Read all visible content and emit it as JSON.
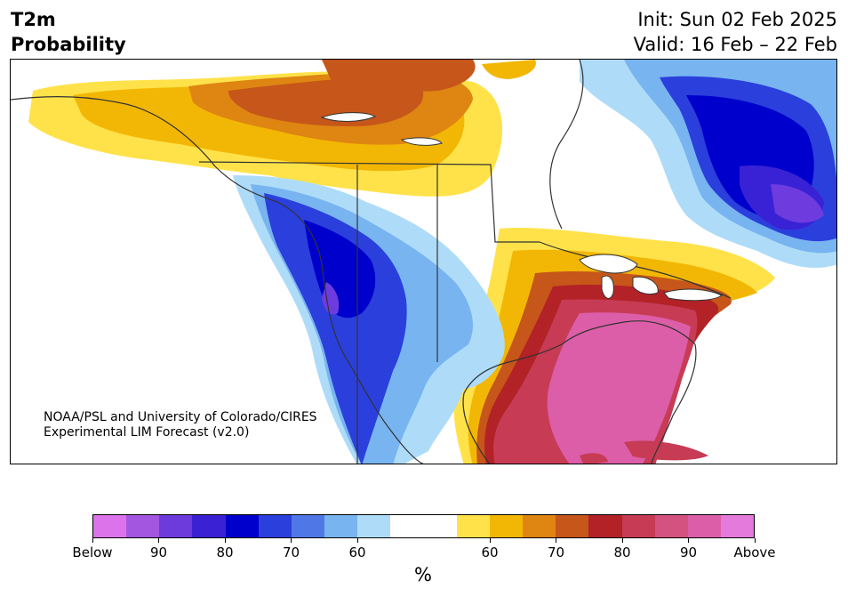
{
  "header": {
    "title_line1": "T2m",
    "title_line2": "Probability",
    "init_text": "Init: Sun 02 Feb 2025",
    "valid_text": "Valid: 16 Feb – 22 Feb"
  },
  "map": {
    "credit_line1": "NOAA/PSL and University of Colorado/CIRES",
    "credit_line2": "Experimental LIM Forecast (v2.0)",
    "colors": {
      "below_light": "#aedcf8",
      "below_60": "#78b4f0",
      "below_65": "#4f78e6",
      "below_70": "#2a3fdc",
      "below_75": "#0000cc",
      "below_80": "#3922d6",
      "below_85": "#6e3cde",
      "above_55": "#ffe24a",
      "above_60": "#f2b705",
      "above_65": "#de8512",
      "above_70": "#c6561a",
      "above_75": "#b22226",
      "above_80": "#c73b55",
      "above_85": "#d4527f",
      "above_90": "#dc5ea8"
    }
  },
  "colorbar": {
    "colors": [
      "#dd73ea",
      "#a356e0",
      "#6d3adc",
      "#3a21d4",
      "#0000cc",
      "#2a3fdc",
      "#4f78e6",
      "#78b4f0",
      "#aedcf8",
      "#ffffff",
      "#ffffff",
      "#ffe24a",
      "#f2b705",
      "#de8512",
      "#c6561a",
      "#b22226",
      "#c73b55",
      "#d4527f",
      "#dc5ea8",
      "#e47adb"
    ],
    "tick_labels": [
      "Below",
      "90",
      "80",
      "70",
      "60",
      "60",
      "70",
      "80",
      "90",
      "Above"
    ],
    "unit_label": "%"
  }
}
